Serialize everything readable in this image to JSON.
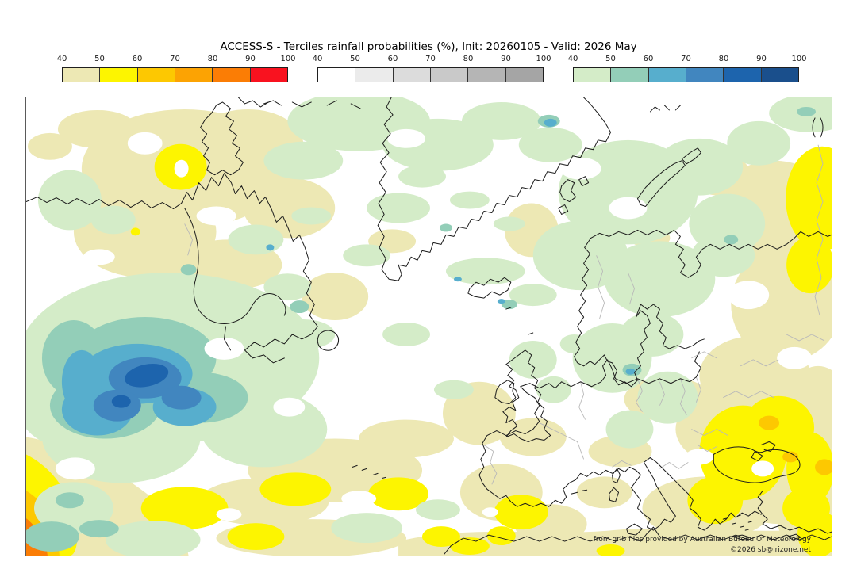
{
  "title": "ACCESS-S - Terciles rainfall probabilities (%), Init: 20260105 - Valid: 2026 May",
  "colorbars": [
    {
      "id": "below-median-dry",
      "ticks": [
        "40",
        "50",
        "60",
        "70",
        "80",
        "90",
        "100"
      ],
      "colors": [
        "#EDE8B4",
        "#FDF500",
        "#FDC801",
        "#FCA303",
        "#FB7D05",
        "#F9121F"
      ]
    },
    {
      "id": "near-median",
      "ticks": [
        "40",
        "50",
        "60",
        "70",
        "80",
        "90",
        "100"
      ],
      "colors": [
        "#FFFFFF",
        "#EBEBEB",
        "#DCDCDC",
        "#C9C9C9",
        "#B5B5B5",
        "#A5A5A5"
      ]
    },
    {
      "id": "above-median-wet",
      "ticks": [
        "40",
        "50",
        "60",
        "70",
        "80",
        "90",
        "100"
      ],
      "colors": [
        "#D4ECC8",
        "#93CEB8",
        "#57AECD",
        "#4186BF",
        "#1D64AD",
        "#1A4F8C"
      ]
    }
  ],
  "map": {
    "attribution": "from grib files provided by Australian Bureau Of Meteorology",
    "copyright": "©2026 sb@irizone.net"
  }
}
